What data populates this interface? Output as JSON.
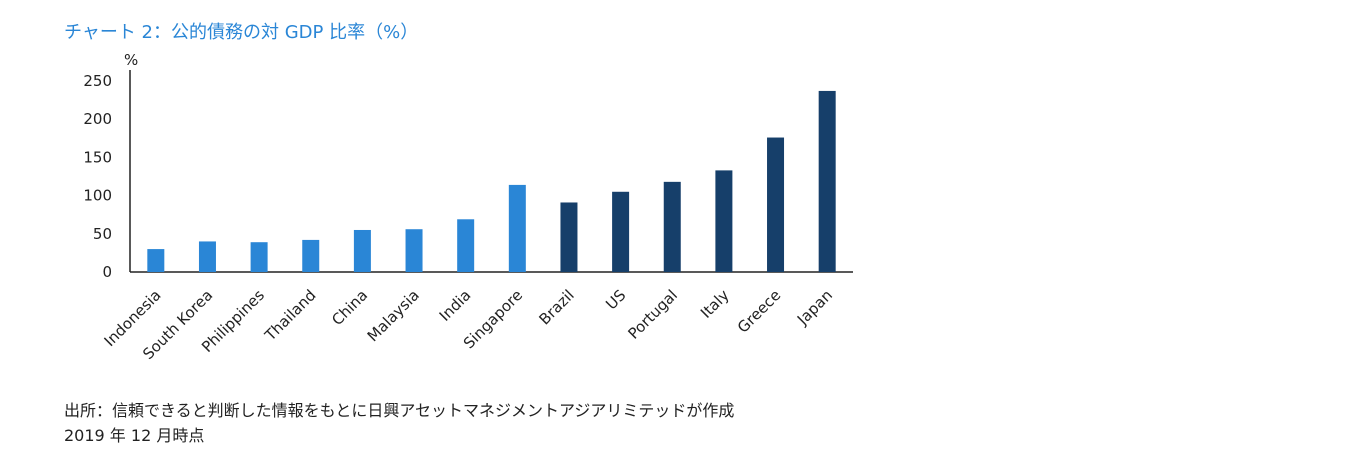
{
  "chart_data": {
    "type": "bar",
    "title": "チャート 2：公的債務の対 GDP 比率（%）",
    "ylabel": "%",
    "ylim": [
      0,
      250
    ],
    "yticks": [
      0,
      50,
      100,
      150,
      200,
      250
    ],
    "grid": false,
    "categories": [
      "Indonesia",
      "South Korea",
      "Philippines",
      "Thailand",
      "China",
      "Malaysia",
      "India",
      "Singapore",
      "Brazil",
      "US",
      "Portugal",
      "Italy",
      "Greece",
      "Japan"
    ],
    "values": [
      30,
      40,
      39,
      42,
      55,
      56,
      69,
      114,
      91,
      105,
      118,
      133,
      176,
      237
    ],
    "colors": {
      "asia": "#2a86d6",
      "other": "#163f6a",
      "axis": "#222222"
    },
    "bar_group": [
      "asia",
      "asia",
      "asia",
      "asia",
      "asia",
      "asia",
      "asia",
      "asia",
      "other",
      "other",
      "other",
      "other",
      "other",
      "other"
    ]
  },
  "source": {
    "line1": "出所：信頼できると判断した情報をもとに日興アセットマネジメントアジアリミテッドが作成",
    "line2": "2019 年 12 月時点"
  }
}
